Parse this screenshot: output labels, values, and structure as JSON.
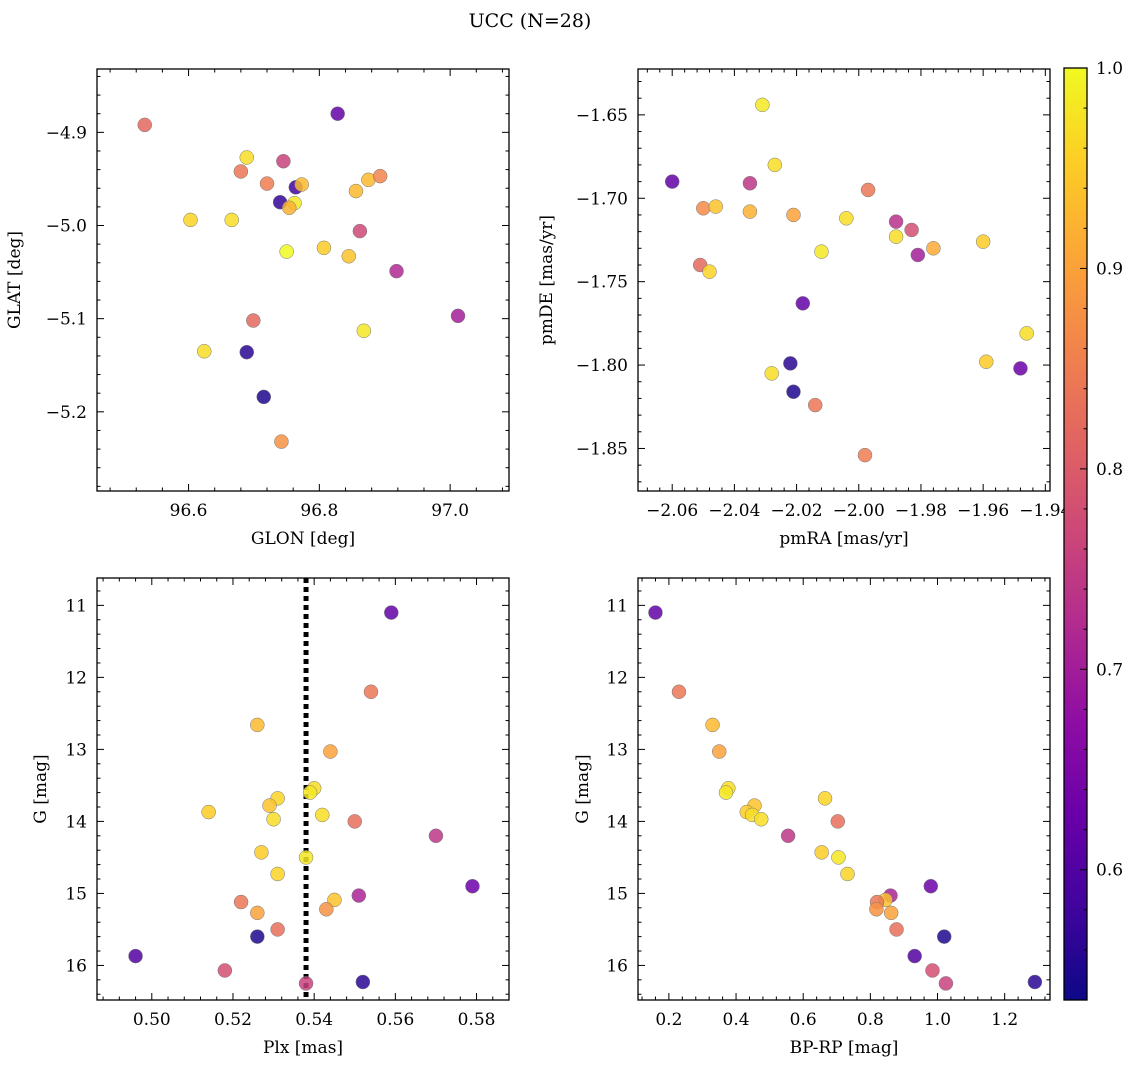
{
  "figure": {
    "title": "UCC (N=28)"
  },
  "colorbar": {
    "cmap": "plasma",
    "min": 0.535,
    "max": 1.0,
    "ticks": [
      0.6,
      0.7,
      0.8,
      0.9,
      1.0
    ],
    "tick_labels": [
      "0.6",
      "0.7",
      "0.8",
      "0.9",
      "1.0"
    ]
  },
  "chart_data": [
    {
      "type": "scatter",
      "title": "",
      "xlabel": "GLON [deg]",
      "ylabel": "GLAT [deg]",
      "xlim": [
        96.46,
        97.09
      ],
      "ylim": [
        -5.285,
        -4.832
      ],
      "y_inverted": false,
      "xticks": [
        96.6,
        96.8,
        97.0
      ],
      "xtick_labels": [
        "96.6",
        "96.8",
        "97.0"
      ],
      "yticks": [
        -5.2,
        -5.1,
        -5.0,
        -4.9
      ],
      "ytick_labels": [
        "−5.2",
        "−5.1",
        "−5.0",
        "−4.9"
      ],
      "points": [
        {
          "x": 96.533,
          "y": -4.892,
          "c": 0.82
        },
        {
          "x": 96.828,
          "y": -4.88,
          "c": 0.62
        },
        {
          "x": 96.689,
          "y": -4.927,
          "c": 0.97
        },
        {
          "x": 96.745,
          "y": -4.931,
          "c": 0.76
        },
        {
          "x": 96.68,
          "y": -4.942,
          "c": 0.84
        },
        {
          "x": 96.72,
          "y": -4.955,
          "c": 0.85
        },
        {
          "x": 96.764,
          "y": -4.959,
          "c": 0.58
        },
        {
          "x": 96.773,
          "y": -4.956,
          "c": 0.93
        },
        {
          "x": 96.875,
          "y": -4.951,
          "c": 0.93
        },
        {
          "x": 96.893,
          "y": -4.947,
          "c": 0.86
        },
        {
          "x": 96.856,
          "y": -4.963,
          "c": 0.93
        },
        {
          "x": 96.74,
          "y": -4.975,
          "c": 0.57
        },
        {
          "x": 96.762,
          "y": -4.976,
          "c": 0.98
        },
        {
          "x": 96.754,
          "y": -4.981,
          "c": 0.92
        },
        {
          "x": 96.603,
          "y": -4.994,
          "c": 0.96
        },
        {
          "x": 96.666,
          "y": -4.994,
          "c": 0.97
        },
        {
          "x": 96.862,
          "y": -5.006,
          "c": 0.77
        },
        {
          "x": 96.75,
          "y": -5.028,
          "c": 1.0
        },
        {
          "x": 96.807,
          "y": -5.024,
          "c": 0.95
        },
        {
          "x": 96.845,
          "y": -5.033,
          "c": 0.94
        },
        {
          "x": 96.918,
          "y": -5.049,
          "c": 0.72
        },
        {
          "x": 97.012,
          "y": -5.097,
          "c": 0.7
        },
        {
          "x": 96.699,
          "y": -5.102,
          "c": 0.82
        },
        {
          "x": 96.868,
          "y": -5.113,
          "c": 0.98
        },
        {
          "x": 96.624,
          "y": -5.135,
          "c": 0.97
        },
        {
          "x": 96.689,
          "y": -5.136,
          "c": 0.56
        },
        {
          "x": 96.715,
          "y": -5.184,
          "c": 0.55
        },
        {
          "x": 96.742,
          "y": -5.232,
          "c": 0.88
        }
      ]
    },
    {
      "type": "scatter",
      "title": "",
      "xlabel": "pmRA [mas/yr]",
      "ylabel": "pmDE [mas/yr]",
      "xlim": [
        -2.071,
        -1.9385
      ],
      "ylim": [
        -1.8755,
        -1.6225
      ],
      "y_inverted": false,
      "xticks": [
        -2.06,
        -2.04,
        -2.02,
        -2.0,
        -1.98,
        -1.96,
        -1.94
      ],
      "xtick_labels": [
        "−2.06",
        "−2.04",
        "−2.02",
        "−2.00",
        "−1.98",
        "−1.96",
        "−1.94"
      ],
      "yticks": [
        -1.85,
        -1.8,
        -1.75,
        -1.7,
        -1.65
      ],
      "ytick_labels": [
        "−1.85",
        "−1.80",
        "−1.75",
        "−1.70",
        "−1.65"
      ],
      "points": [
        {
          "x": -2.031,
          "y": -1.644,
          "c": 0.98
        },
        {
          "x": -2.027,
          "y": -1.68,
          "c": 0.97
        },
        {
          "x": -2.06,
          "y": -1.69,
          "c": 0.62
        },
        {
          "x": -2.035,
          "y": -1.691,
          "c": 0.74
        },
        {
          "x": -1.997,
          "y": -1.695,
          "c": 0.84
        },
        {
          "x": -2.05,
          "y": -1.706,
          "c": 0.87
        },
        {
          "x": -2.046,
          "y": -1.705,
          "c": 0.94
        },
        {
          "x": -2.035,
          "y": -1.708,
          "c": 0.92
        },
        {
          "x": -2.021,
          "y": -1.71,
          "c": 0.9
        },
        {
          "x": -2.004,
          "y": -1.712,
          "c": 0.97
        },
        {
          "x": -1.988,
          "y": -1.714,
          "c": 0.73
        },
        {
          "x": -1.983,
          "y": -1.719,
          "c": 0.78
        },
        {
          "x": -1.988,
          "y": -1.723,
          "c": 0.97
        },
        {
          "x": -1.96,
          "y": -1.726,
          "c": 0.95
        },
        {
          "x": -1.976,
          "y": -1.73,
          "c": 0.91
        },
        {
          "x": -2.012,
          "y": -1.732,
          "c": 0.98
        },
        {
          "x": -1.981,
          "y": -1.734,
          "c": 0.7
        },
        {
          "x": -2.051,
          "y": -1.74,
          "c": 0.82
        },
        {
          "x": -2.048,
          "y": -1.744,
          "c": 0.96
        },
        {
          "x": -2.018,
          "y": -1.763,
          "c": 0.62
        },
        {
          "x": -1.946,
          "y": -1.781,
          "c": 0.97
        },
        {
          "x": -1.959,
          "y": -1.798,
          "c": 0.95
        },
        {
          "x": -2.022,
          "y": -1.799,
          "c": 0.56
        },
        {
          "x": -1.948,
          "y": -1.802,
          "c": 0.63
        },
        {
          "x": -2.028,
          "y": -1.805,
          "c": 0.97
        },
        {
          "x": -2.021,
          "y": -1.816,
          "c": 0.55
        },
        {
          "x": -2.014,
          "y": -1.824,
          "c": 0.84
        },
        {
          "x": -1.998,
          "y": -1.854,
          "c": 0.85
        }
      ]
    },
    {
      "type": "scatter",
      "title": "",
      "xlabel": "Plx [mas]",
      "ylabel": "G [mag]",
      "xlim": [
        0.4865,
        0.588
      ],
      "ylim": [
        16.48,
        10.62
      ],
      "y_inverted": true,
      "xticks": [
        0.5,
        0.52,
        0.54,
        0.56,
        0.58
      ],
      "xtick_labels": [
        "0.50",
        "0.52",
        "0.54",
        "0.56",
        "0.58"
      ],
      "yticks": [
        11,
        12,
        13,
        14,
        15,
        16
      ],
      "ytick_labels": [
        "11",
        "12",
        "13",
        "14",
        "15",
        "16"
      ],
      "vline": {
        "x": 0.538,
        "style": "dotted"
      },
      "points": [
        {
          "x": 0.559,
          "y": 11.1,
          "c": 0.62
        },
        {
          "x": 0.554,
          "y": 12.2,
          "c": 0.84
        },
        {
          "x": 0.526,
          "y": 12.66,
          "c": 0.93
        },
        {
          "x": 0.544,
          "y": 13.03,
          "c": 0.9
        },
        {
          "x": 0.54,
          "y": 13.54,
          "c": 0.97
        },
        {
          "x": 0.539,
          "y": 13.6,
          "c": 0.98
        },
        {
          "x": 0.531,
          "y": 13.68,
          "c": 0.96
        },
        {
          "x": 0.529,
          "y": 13.78,
          "c": 0.94
        },
        {
          "x": 0.514,
          "y": 13.87,
          "c": 0.95
        },
        {
          "x": 0.542,
          "y": 13.91,
          "c": 0.97
        },
        {
          "x": 0.53,
          "y": 13.97,
          "c": 0.97
        },
        {
          "x": 0.55,
          "y": 14.0,
          "c": 0.83
        },
        {
          "x": 0.57,
          "y": 14.2,
          "c": 0.74
        },
        {
          "x": 0.527,
          "y": 14.43,
          "c": 0.95
        },
        {
          "x": 0.538,
          "y": 14.5,
          "c": 0.98
        },
        {
          "x": 0.531,
          "y": 14.73,
          "c": 0.96
        },
        {
          "x": 0.579,
          "y": 14.9,
          "c": 0.63
        },
        {
          "x": 0.551,
          "y": 15.03,
          "c": 0.71
        },
        {
          "x": 0.545,
          "y": 15.09,
          "c": 0.94
        },
        {
          "x": 0.522,
          "y": 15.12,
          "c": 0.84
        },
        {
          "x": 0.543,
          "y": 15.22,
          "c": 0.88
        },
        {
          "x": 0.526,
          "y": 15.27,
          "c": 0.9
        },
        {
          "x": 0.531,
          "y": 15.5,
          "c": 0.83
        },
        {
          "x": 0.526,
          "y": 15.6,
          "c": 0.55
        },
        {
          "x": 0.496,
          "y": 15.87,
          "c": 0.6
        },
        {
          "x": 0.518,
          "y": 16.07,
          "c": 0.78
        },
        {
          "x": 0.538,
          "y": 16.25,
          "c": 0.76
        },
        {
          "x": 0.552,
          "y": 16.23,
          "c": 0.56
        }
      ]
    },
    {
      "type": "scatter",
      "title": "",
      "xlabel": "BP-RP [mag]",
      "ylabel": "G [mag]",
      "xlim": [
        0.108,
        1.335
      ],
      "ylim": [
        16.48,
        10.62
      ],
      "y_inverted": true,
      "xticks": [
        0.2,
        0.4,
        0.6,
        0.8,
        1.0,
        1.2
      ],
      "xtick_labels": [
        "0.2",
        "0.4",
        "0.6",
        "0.8",
        "1.0",
        "1.2"
      ],
      "yticks": [
        11,
        12,
        13,
        14,
        15,
        16
      ],
      "ytick_labels": [
        "11",
        "12",
        "13",
        "14",
        "15",
        "16"
      ],
      "points": [
        {
          "x": 0.16,
          "y": 11.1,
          "c": 0.62
        },
        {
          "x": 0.23,
          "y": 12.2,
          "c": 0.84
        },
        {
          "x": 0.33,
          "y": 12.66,
          "c": 0.93
        },
        {
          "x": 0.35,
          "y": 13.03,
          "c": 0.9
        },
        {
          "x": 0.377,
          "y": 13.54,
          "c": 0.97
        },
        {
          "x": 0.37,
          "y": 13.6,
          "c": 0.98
        },
        {
          "x": 0.665,
          "y": 13.68,
          "c": 0.96
        },
        {
          "x": 0.455,
          "y": 13.78,
          "c": 0.94
        },
        {
          "x": 0.432,
          "y": 13.87,
          "c": 0.95
        },
        {
          "x": 0.448,
          "y": 13.91,
          "c": 0.97
        },
        {
          "x": 0.475,
          "y": 13.97,
          "c": 0.97
        },
        {
          "x": 0.703,
          "y": 14.0,
          "c": 0.83
        },
        {
          "x": 0.555,
          "y": 14.2,
          "c": 0.74
        },
        {
          "x": 0.655,
          "y": 14.43,
          "c": 0.95
        },
        {
          "x": 0.705,
          "y": 14.5,
          "c": 0.98
        },
        {
          "x": 0.732,
          "y": 14.73,
          "c": 0.96
        },
        {
          "x": 0.98,
          "y": 14.9,
          "c": 0.63
        },
        {
          "x": 0.86,
          "y": 15.03,
          "c": 0.71
        },
        {
          "x": 0.845,
          "y": 15.09,
          "c": 0.94
        },
        {
          "x": 0.82,
          "y": 15.12,
          "c": 0.84
        },
        {
          "x": 0.818,
          "y": 15.22,
          "c": 0.88
        },
        {
          "x": 0.862,
          "y": 15.27,
          "c": 0.9
        },
        {
          "x": 0.878,
          "y": 15.5,
          "c": 0.83
        },
        {
          "x": 1.02,
          "y": 15.6,
          "c": 0.55
        },
        {
          "x": 0.932,
          "y": 15.87,
          "c": 0.6
        },
        {
          "x": 0.985,
          "y": 16.07,
          "c": 0.78
        },
        {
          "x": 1.025,
          "y": 16.25,
          "c": 0.76
        },
        {
          "x": 1.29,
          "y": 16.23,
          "c": 0.56
        }
      ]
    }
  ]
}
